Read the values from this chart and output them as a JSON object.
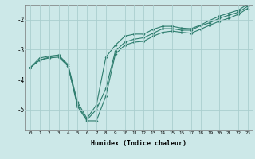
{
  "xlabel": "Humidex (Indice chaleur)",
  "ylabel": "",
  "bg_color": "#cce8e8",
  "line_color": "#2e7d6e",
  "grid_color": "#aacece",
  "x": [
    0,
    1,
    2,
    3,
    4,
    5,
    6,
    7,
    8,
    9,
    10,
    11,
    12,
    13,
    14,
    15,
    16,
    17,
    18,
    19,
    20,
    21,
    22,
    23
  ],
  "y_line1": [
    -3.6,
    -3.35,
    -3.25,
    -3.2,
    -3.55,
    -4.85,
    -5.35,
    -5.0,
    -4.3,
    -3.05,
    -2.75,
    -2.65,
    -2.6,
    -2.45,
    -2.3,
    -2.3,
    -2.35,
    -2.35,
    -2.2,
    -2.1,
    -1.95,
    -1.85,
    -1.75,
    -1.55
  ],
  "y_line2": [
    -3.6,
    -3.35,
    -3.28,
    -3.25,
    -3.55,
    -4.9,
    -5.38,
    -5.38,
    -4.55,
    -3.15,
    -2.85,
    -2.75,
    -2.72,
    -2.55,
    -2.42,
    -2.38,
    -2.42,
    -2.45,
    -2.32,
    -2.18,
    -2.05,
    -1.95,
    -1.82,
    -1.62
  ],
  "y_line3": [
    -3.6,
    -3.28,
    -3.22,
    -3.18,
    -3.5,
    -4.75,
    -5.3,
    -4.85,
    -3.25,
    -2.85,
    -2.55,
    -2.48,
    -2.48,
    -2.32,
    -2.22,
    -2.22,
    -2.28,
    -2.3,
    -2.18,
    -2.02,
    -1.88,
    -1.78,
    -1.68,
    -1.48
  ],
  "ylim": [
    -5.7,
    -1.5
  ],
  "xlim": [
    -0.5,
    23.5
  ],
  "yticks": [
    -5,
    -4,
    -3,
    -2
  ],
  "xticks": [
    0,
    1,
    2,
    3,
    4,
    5,
    6,
    7,
    8,
    9,
    10,
    11,
    12,
    13,
    14,
    15,
    16,
    17,
    18,
    19,
    20,
    21,
    22,
    23
  ]
}
